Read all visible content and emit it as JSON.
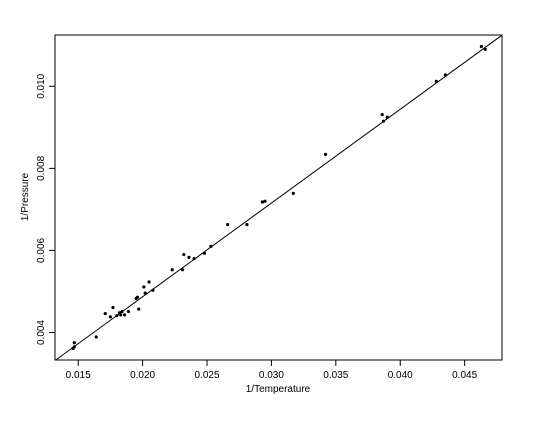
{
  "chart_data": {
    "type": "scatter",
    "xlabel": "1/Temperature",
    "ylabel": "1/Pressure",
    "xlim": [
      0.0132,
      0.0479
    ],
    "ylim": [
      0.00333,
      0.01125
    ],
    "xticks": [
      0.015,
      0.02,
      0.025,
      0.03,
      0.035,
      0.04,
      0.045
    ],
    "xtick_labels": [
      "0.015",
      "0.020",
      "0.025",
      "0.030",
      "0.035",
      "0.040",
      "0.045"
    ],
    "yticks": [
      0.004,
      0.006,
      0.008,
      0.01
    ],
    "ytick_labels": [
      "0.004",
      "0.006",
      "0.008",
      "0.010"
    ],
    "grid": false,
    "series": [
      {
        "points": [
          [
            0.0146,
            0.00361
          ],
          [
            0.0147,
            0.00365
          ],
          [
            0.0147,
            0.00375
          ],
          [
            0.0164,
            0.00389
          ],
          [
            0.0171,
            0.00446
          ],
          [
            0.0175,
            0.00438
          ],
          [
            0.0177,
            0.00461
          ],
          [
            0.018,
            0.00441
          ],
          [
            0.0182,
            0.00448
          ],
          [
            0.0183,
            0.00443
          ],
          [
            0.0184,
            0.00451
          ],
          [
            0.0186,
            0.00443
          ],
          [
            0.0189,
            0.00451
          ],
          [
            0.0195,
            0.00483
          ],
          [
            0.0196,
            0.00486
          ],
          [
            0.0197,
            0.00457
          ],
          [
            0.0201,
            0.00511
          ],
          [
            0.0202,
            0.00496
          ],
          [
            0.0205,
            0.00523
          ],
          [
            0.0208,
            0.00503
          ],
          [
            0.0223,
            0.00553
          ],
          [
            0.0231,
            0.00553
          ],
          [
            0.0232,
            0.0059
          ],
          [
            0.0236,
            0.00583
          ],
          [
            0.024,
            0.0058
          ],
          [
            0.0248,
            0.00593
          ],
          [
            0.0253,
            0.0061
          ],
          [
            0.0266,
            0.00663
          ],
          [
            0.0281,
            0.00663
          ],
          [
            0.0293,
            0.00718
          ],
          [
            0.0295,
            0.0072
          ],
          [
            0.0317,
            0.00739
          ],
          [
            0.0342,
            0.00834
          ],
          [
            0.0386,
            0.00931
          ],
          [
            0.0387,
            0.00915
          ],
          [
            0.039,
            0.00925
          ],
          [
            0.0428,
            0.01012
          ],
          [
            0.0435,
            0.01028
          ],
          [
            0.0463,
            0.01097
          ],
          [
            0.0466,
            0.0109
          ]
        ]
      }
    ],
    "fit_line": {
      "slope": 0.2285,
      "intercept": 0.0003
    }
  }
}
